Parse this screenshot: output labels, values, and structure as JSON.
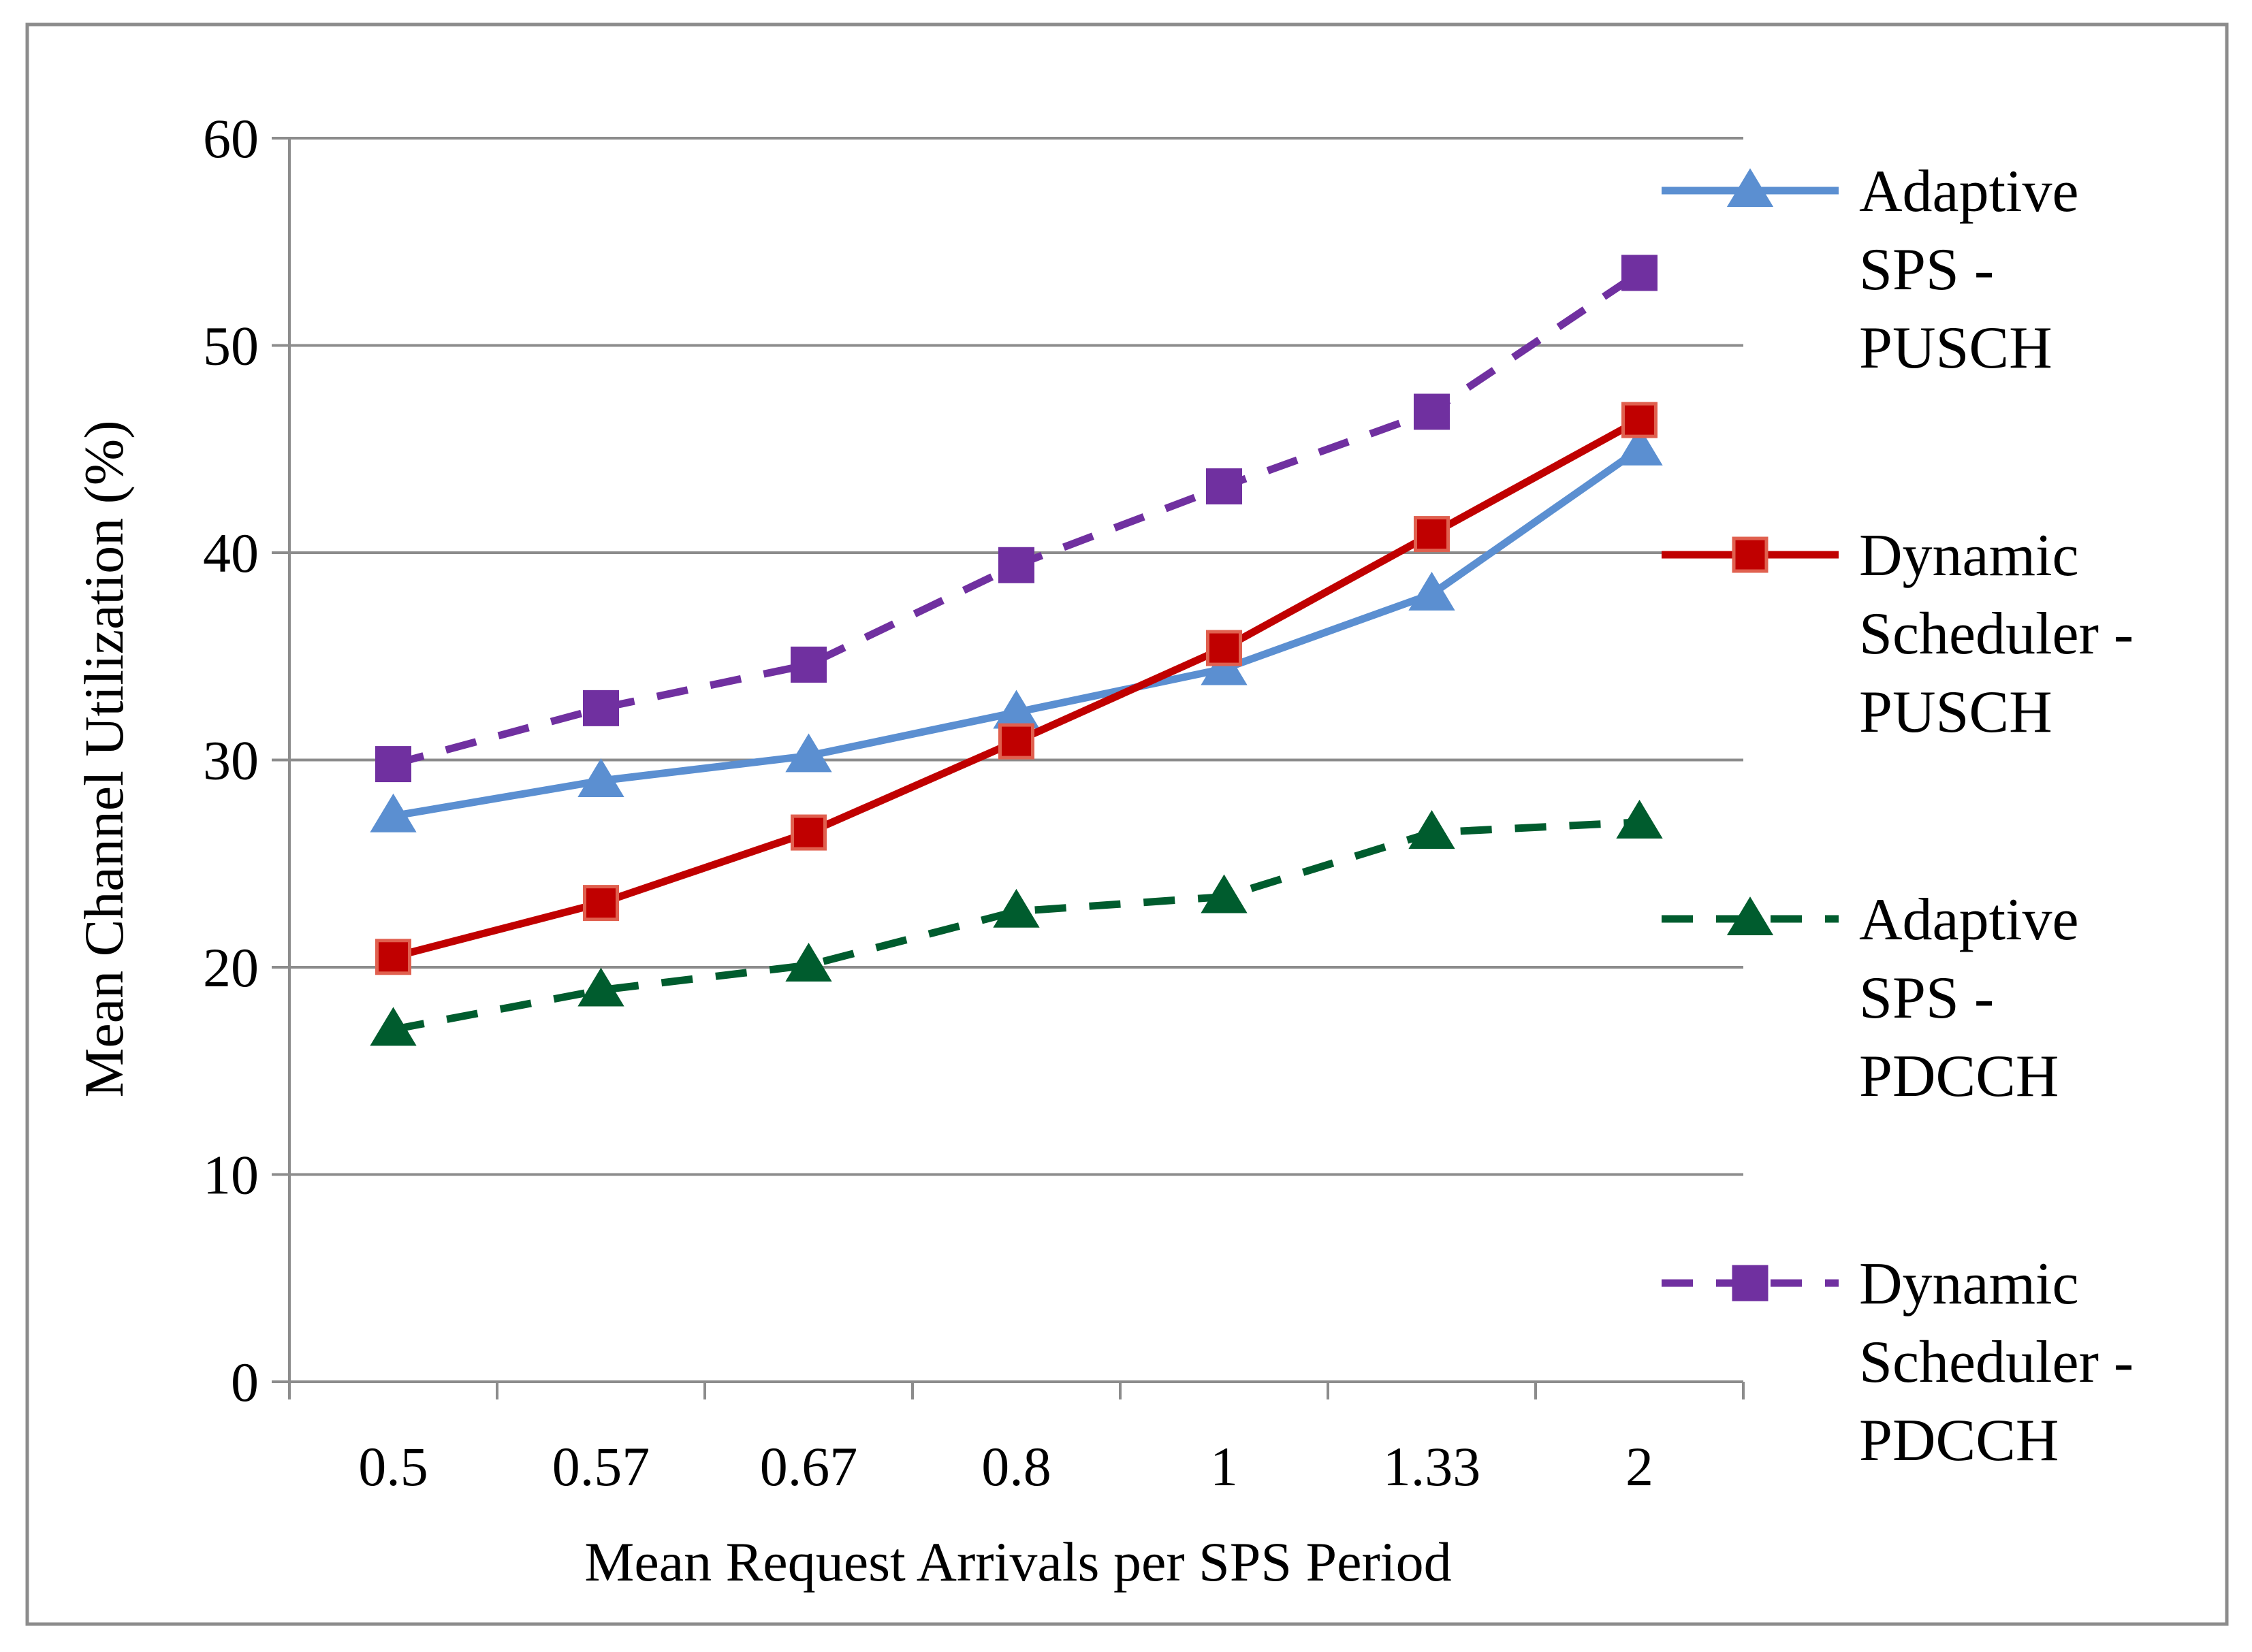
{
  "chart_data": {
    "type": "line",
    "categories": [
      "0.5",
      "0.57",
      "0.67",
      "0.8",
      "1",
      "1.33",
      "2"
    ],
    "xlabel": "Mean Request Arrivals per SPS Period",
    "ylabel": "Mean Channel Utilization (%)",
    "ylim": [
      0,
      60
    ],
    "yticks": [
      0,
      10,
      20,
      30,
      40,
      50,
      60
    ],
    "grid": true,
    "legend_position": "right",
    "series": [
      {
        "name": "Adaptive SPS - PUSCH",
        "legend_lines": [
          "Adaptive",
          "SPS -",
          "PUSCH"
        ],
        "values": [
          27.3,
          29.0,
          30.2,
          32.3,
          34.4,
          38.0,
          45.0
        ],
        "color": "#5B8FD1",
        "marker": "triangle",
        "dashed": false
      },
      {
        "name": "Dynamic Scheduler - PUSCH",
        "legend_lines": [
          "Dynamic",
          "Scheduler -",
          "PUSCH"
        ],
        "values": [
          20.5,
          23.1,
          26.5,
          30.9,
          35.4,
          40.9,
          46.4
        ],
        "color": "#C00000",
        "marker": "square",
        "dashed": false
      },
      {
        "name": "Adaptive SPS - PDCCH",
        "legend_lines": [
          "Adaptive",
          "SPS  -",
          "PDCCH"
        ],
        "values": [
          17.0,
          18.9,
          20.1,
          22.7,
          23.4,
          26.5,
          27.0
        ],
        "color": "#005C2E",
        "marker": "triangle",
        "dashed": true
      },
      {
        "name": "Dynamic Scheduler - PDCCH",
        "legend_lines": [
          "Dynamic",
          "Scheduler -",
          "PDCCH"
        ],
        "values": [
          29.8,
          32.5,
          34.6,
          39.4,
          43.2,
          46.8,
          53.5
        ],
        "color": "#7030A0",
        "marker": "square",
        "dashed": true
      }
    ]
  }
}
